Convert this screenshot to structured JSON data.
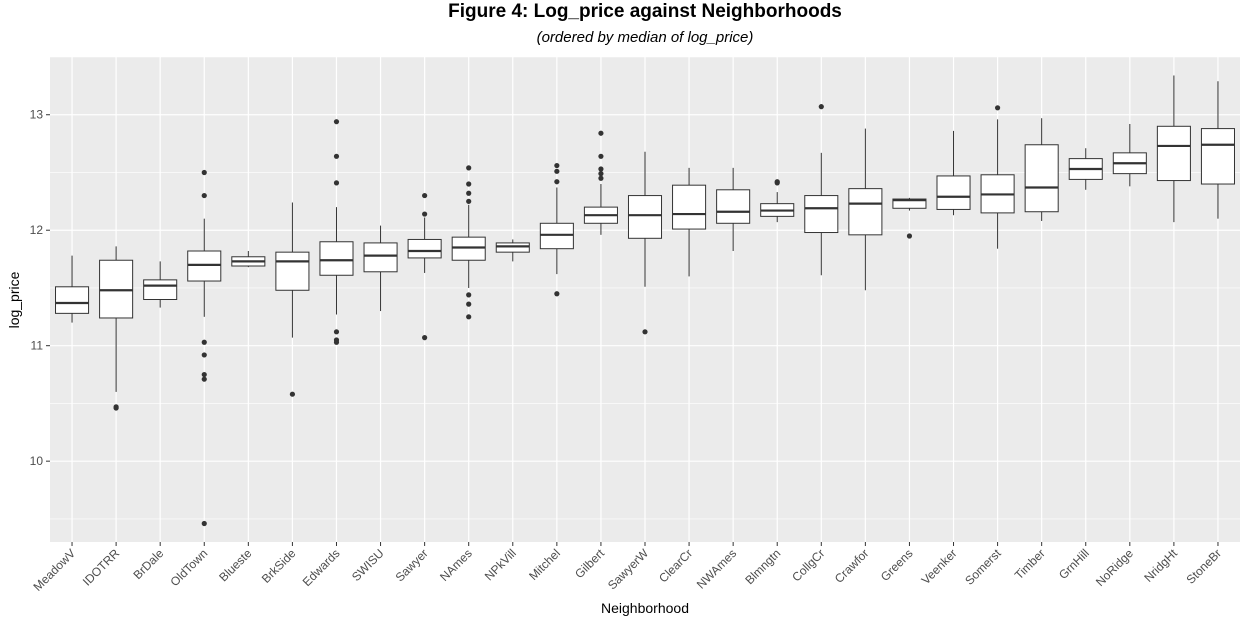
{
  "chart_data": {
    "type": "boxplot",
    "title": "Figure 4: Log_price against Neighborhoods",
    "subtitle": "(ordered by median of log_price)",
    "xlabel": "Neighborhood",
    "ylabel": "log_price",
    "ylim": [
      9.3,
      13.5
    ],
    "yticks": [
      10,
      11,
      12,
      13
    ],
    "grid": true,
    "series": [
      {
        "category": "MeadowV",
        "whisker_low": 11.2,
        "q1": 11.28,
        "median": 11.37,
        "q3": 11.51,
        "whisker_high": 11.78,
        "outliers": []
      },
      {
        "category": "IDOTRR",
        "whisker_low": 10.6,
        "q1": 11.24,
        "median": 11.48,
        "q3": 11.74,
        "whisker_high": 11.86,
        "outliers": [
          10.46,
          10.47
        ]
      },
      {
        "category": "BrDale",
        "whisker_low": 11.33,
        "q1": 11.4,
        "median": 11.52,
        "q3": 11.57,
        "whisker_high": 11.73,
        "outliers": []
      },
      {
        "category": "OldTown",
        "whisker_low": 11.25,
        "q1": 11.56,
        "median": 11.7,
        "q3": 11.82,
        "whisker_high": 12.1,
        "outliers": [
          12.5,
          12.3,
          11.03,
          10.92,
          10.75,
          10.71,
          9.46
        ]
      },
      {
        "category": "Blueste",
        "whisker_low": 11.68,
        "q1": 11.69,
        "median": 11.73,
        "q3": 11.77,
        "whisker_high": 11.82,
        "outliers": []
      },
      {
        "category": "BrkSide",
        "whisker_low": 11.07,
        "q1": 11.48,
        "median": 11.73,
        "q3": 11.81,
        "whisker_high": 12.24,
        "outliers": [
          10.58
        ]
      },
      {
        "category": "Edwards",
        "whisker_low": 11.27,
        "q1": 11.61,
        "median": 11.74,
        "q3": 11.9,
        "whisker_high": 12.2,
        "outliers": [
          12.94,
          12.64,
          12.41,
          11.12,
          11.05,
          11.03
        ]
      },
      {
        "category": "SWISU",
        "whisker_low": 11.3,
        "q1": 11.64,
        "median": 11.78,
        "q3": 11.89,
        "whisker_high": 12.04,
        "outliers": []
      },
      {
        "category": "Sawyer",
        "whisker_low": 11.63,
        "q1": 11.76,
        "median": 11.82,
        "q3": 11.92,
        "whisker_high": 12.11,
        "outliers": [
          12.3,
          12.14,
          11.07
        ]
      },
      {
        "category": "NAmes",
        "whisker_low": 11.5,
        "q1": 11.74,
        "median": 11.85,
        "q3": 11.94,
        "whisker_high": 12.22,
        "outliers": [
          12.54,
          12.4,
          12.32,
          12.25,
          11.44,
          11.36,
          11.25
        ]
      },
      {
        "category": "NPkVill",
        "whisker_low": 11.73,
        "q1": 11.81,
        "median": 11.86,
        "q3": 11.89,
        "whisker_high": 11.92,
        "outliers": []
      },
      {
        "category": "Mitchel",
        "whisker_low": 11.62,
        "q1": 11.84,
        "median": 11.96,
        "q3": 12.06,
        "whisker_high": 12.37,
        "outliers": [
          12.56,
          12.51,
          12.42,
          11.45
        ]
      },
      {
        "category": "Gilbert",
        "whisker_low": 11.96,
        "q1": 12.06,
        "median": 12.13,
        "q3": 12.2,
        "whisker_high": 12.4,
        "outliers": [
          12.84,
          12.64,
          12.53,
          12.49,
          12.45
        ]
      },
      {
        "category": "SawyerW",
        "whisker_low": 11.51,
        "q1": 11.93,
        "median": 12.13,
        "q3": 12.3,
        "whisker_high": 12.68,
        "outliers": [
          11.12
        ]
      },
      {
        "category": "ClearCr",
        "whisker_low": 11.6,
        "q1": 12.01,
        "median": 12.14,
        "q3": 12.39,
        "whisker_high": 12.54,
        "outliers": []
      },
      {
        "category": "NWAmes",
        "whisker_low": 11.82,
        "q1": 12.06,
        "median": 12.16,
        "q3": 12.35,
        "whisker_high": 12.54,
        "outliers": []
      },
      {
        "category": "Blmngtn",
        "whisker_low": 12.07,
        "q1": 12.12,
        "median": 12.17,
        "q3": 12.23,
        "whisker_high": 12.33,
        "outliers": [
          12.42,
          12.41
        ]
      },
      {
        "category": "CollgCr",
        "whisker_low": 11.61,
        "q1": 11.98,
        "median": 12.19,
        "q3": 12.3,
        "whisker_high": 12.67,
        "outliers": [
          13.07
        ]
      },
      {
        "category": "Crawfor",
        "whisker_low": 11.48,
        "q1": 11.96,
        "median": 12.23,
        "q3": 12.36,
        "whisker_high": 12.88,
        "outliers": []
      },
      {
        "category": "Greens",
        "whisker_low": 12.17,
        "q1": 12.19,
        "median": 12.26,
        "q3": 12.27,
        "whisker_high": 12.28,
        "outliers": [
          11.95
        ]
      },
      {
        "category": "Veenker",
        "whisker_low": 12.13,
        "q1": 12.18,
        "median": 12.29,
        "q3": 12.47,
        "whisker_high": 12.86,
        "outliers": []
      },
      {
        "category": "Somerst",
        "whisker_low": 11.84,
        "q1": 12.15,
        "median": 12.31,
        "q3": 12.48,
        "whisker_high": 12.96,
        "outliers": [
          13.06
        ]
      },
      {
        "category": "Timber",
        "whisker_low": 12.08,
        "q1": 12.16,
        "median": 12.37,
        "q3": 12.74,
        "whisker_high": 12.97,
        "outliers": []
      },
      {
        "category": "GrnHill",
        "whisker_low": 12.35,
        "q1": 12.44,
        "median": 12.53,
        "q3": 12.62,
        "whisker_high": 12.71,
        "outliers": []
      },
      {
        "category": "NoRidge",
        "whisker_low": 12.38,
        "q1": 12.49,
        "median": 12.58,
        "q3": 12.67,
        "whisker_high": 12.92,
        "outliers": []
      },
      {
        "category": "NridgHt",
        "whisker_low": 12.07,
        "q1": 12.43,
        "median": 12.73,
        "q3": 12.9,
        "whisker_high": 13.34,
        "outliers": []
      },
      {
        "category": "StoneBr",
        "whisker_low": 12.1,
        "q1": 12.4,
        "median": 12.74,
        "q3": 12.88,
        "whisker_high": 13.29,
        "outliers": []
      }
    ]
  },
  "style": {
    "panel_background": "#ebebeb",
    "grid_major": "#ffffff",
    "box_fill": "#ffffff",
    "box_stroke": "#333333",
    "outlier_color": "#333333"
  }
}
